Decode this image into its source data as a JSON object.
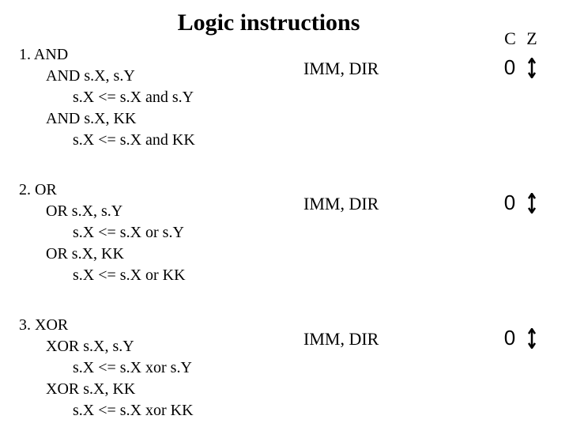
{
  "title": "Logic instructions",
  "flag_headers": {
    "c": "C",
    "z": "Z"
  },
  "arrow": {
    "stroke": "#000000",
    "stroke_width": 2.5,
    "height": 26,
    "width": 10
  },
  "instructions": [
    {
      "num_name": "1.    AND",
      "lines": [
        {
          "text": "AND s.X, s.Y",
          "indent": 1
        },
        {
          "text": "s.X <= s.X and s.Y",
          "indent": 2
        },
        {
          "text": "AND s.X, KK",
          "indent": 1
        },
        {
          "text": "s.X <= s.X and KK",
          "indent": 2
        }
      ],
      "mode": "IMM, DIR",
      "c_flag": "0"
    },
    {
      "num_name": "2. OR",
      "lines": [
        {
          "text": "OR s.X, s.Y",
          "indent": 1
        },
        {
          "text": "s.X <= s.X or s.Y",
          "indent": 2
        },
        {
          "text": "OR s.X, KK",
          "indent": 1
        },
        {
          "text": "s.X <= s.X or KK",
          "indent": 2
        }
      ],
      "mode": "IMM, DIR",
      "c_flag": "0"
    },
    {
      "num_name": "3. XOR",
      "lines": [
        {
          "text": "XOR s.X, s.Y",
          "indent": 1
        },
        {
          "text": "s.X <= s.X xor s.Y",
          "indent": 2
        },
        {
          "text": "XOR s.X, KK",
          "indent": 1
        },
        {
          "text": "s.X <= s.X xor KK",
          "indent": 2
        }
      ],
      "mode": "IMM, DIR",
      "c_flag": "0"
    }
  ]
}
